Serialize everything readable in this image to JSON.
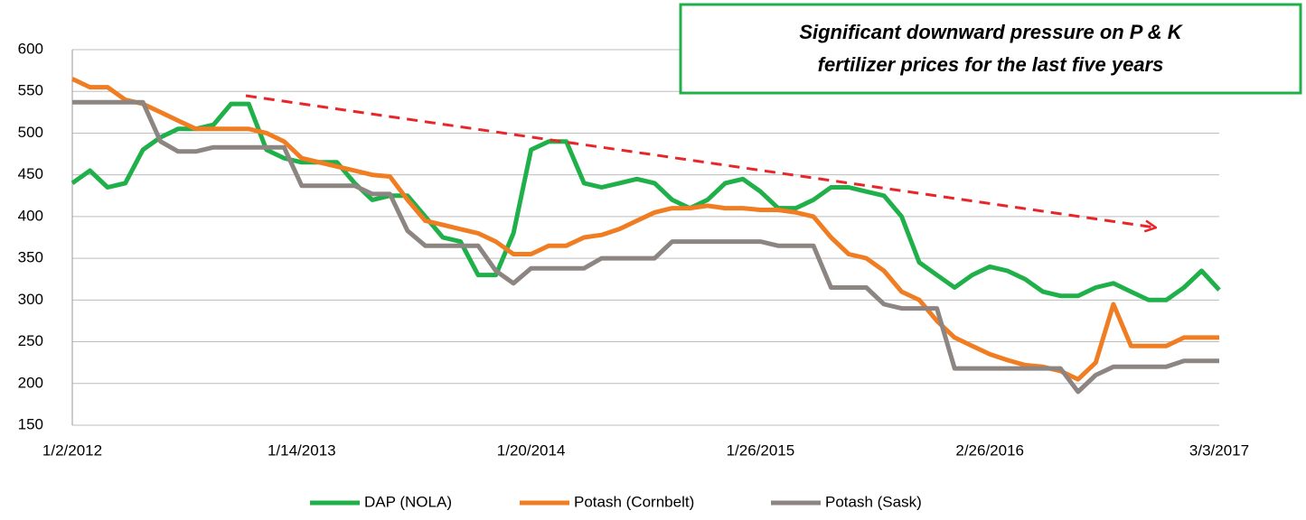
{
  "chart_data": {
    "type": "line",
    "annotation": [
      "Significant downward pressure on P & K",
      "fertilizer prices for the last five years"
    ],
    "categories": [
      "1/2/2012",
      null,
      null,
      null,
      null,
      null,
      null,
      null,
      null,
      null,
      null,
      null,
      null,
      "1/14/2013",
      null,
      null,
      null,
      null,
      null,
      null,
      null,
      null,
      null,
      null,
      null,
      null,
      "1/20/2014",
      null,
      null,
      null,
      null,
      null,
      null,
      null,
      null,
      null,
      null,
      null,
      null,
      "1/26/2015",
      null,
      null,
      null,
      null,
      null,
      null,
      null,
      null,
      null,
      null,
      null,
      null,
      "2/26/2016",
      null,
      null,
      null,
      null,
      null,
      null,
      null,
      null,
      null,
      null,
      null,
      null,
      "3/3/2017"
    ],
    "series": [
      {
        "name": "DAP (NOLA)",
        "color": "#1fb04a",
        "values": [
          440,
          455,
          435,
          440,
          480,
          495,
          505,
          505,
          510,
          535,
          535,
          480,
          470,
          465,
          465,
          465,
          440,
          420,
          425,
          425,
          400,
          375,
          370,
          330,
          330,
          380,
          480,
          490,
          490,
          440,
          435,
          440,
          445,
          440,
          420,
          410,
          420,
          440,
          445,
          430,
          410,
          410,
          420,
          435,
          435,
          430,
          425,
          400,
          345,
          330,
          315,
          330,
          340,
          335,
          325,
          310,
          305,
          305,
          315,
          320,
          310,
          300,
          300,
          315,
          335,
          312
        ]
      },
      {
        "name": "Potash (Cornbelt)",
        "color": "#f07d22",
        "values": [
          565,
          555,
          555,
          540,
          535,
          525,
          515,
          505,
          505,
          505,
          505,
          500,
          490,
          470,
          465,
          460,
          455,
          450,
          448,
          420,
          395,
          390,
          385,
          380,
          370,
          355,
          355,
          365,
          365,
          375,
          378,
          385,
          395,
          405,
          410,
          410,
          413,
          410,
          410,
          408,
          408,
          405,
          400,
          375,
          355,
          350,
          335,
          310,
          300,
          275,
          255,
          245,
          235,
          228,
          222,
          220,
          215,
          205,
          225,
          295,
          245,
          245,
          245,
          255,
          255,
          255
        ]
      },
      {
        "name": "Potash (Sask)",
        "color": "#8c8582",
        "values": [
          537,
          537,
          537,
          537,
          537,
          490,
          478,
          478,
          483,
          483,
          483,
          483,
          483,
          437,
          437,
          437,
          437,
          427,
          427,
          383,
          365,
          365,
          365,
          365,
          335,
          320,
          338,
          338,
          338,
          338,
          350,
          350,
          350,
          350,
          370,
          370,
          370,
          370,
          370,
          370,
          365,
          365,
          365,
          315,
          315,
          315,
          295,
          290,
          290,
          290,
          218,
          218,
          218,
          218,
          218,
          218,
          218,
          190,
          210,
          220,
          220,
          220,
          220,
          227,
          227,
          227
        ]
      }
    ],
    "ylim": [
      150,
      600
    ],
    "yticks": [
      150,
      200,
      250,
      300,
      350,
      400,
      450,
      500,
      550,
      600
    ],
    "grid": true
  }
}
